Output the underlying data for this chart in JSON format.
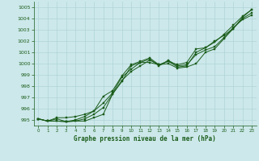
{
  "background_color": "#cce8ea",
  "grid_color": "#b0d4d8",
  "line_color": "#1a5c1a",
  "title": "Graphe pression niveau de la mer (hPa)",
  "xlim": [
    -0.5,
    23.5
  ],
  "ylim": [
    994.5,
    1005.5
  ],
  "yticks": [
    995,
    996,
    997,
    998,
    999,
    1000,
    1001,
    1002,
    1003,
    1004,
    1005
  ],
  "xticks": [
    0,
    1,
    2,
    3,
    4,
    5,
    6,
    7,
    8,
    9,
    10,
    11,
    12,
    13,
    14,
    15,
    16,
    17,
    18,
    19,
    20,
    21,
    22,
    23
  ],
  "series": [
    [
      995.1,
      994.9,
      994.9,
      994.85,
      994.9,
      994.9,
      995.2,
      995.5,
      997.3,
      998.4,
      999.8,
      1000.1,
      1000.1,
      999.9,
      1000.0,
      999.6,
      999.7,
      1000.0,
      1001.0,
      1001.3,
      1002.2,
      1003.1,
      1004.0,
      1004.5
    ],
    [
      995.1,
      994.9,
      995.1,
      994.85,
      994.9,
      995.1,
      995.5,
      996.1,
      997.3,
      998.5,
      999.3,
      999.8,
      1000.3,
      999.9,
      1000.2,
      999.7,
      999.8,
      1001.0,
      1001.4,
      1001.9,
      1002.6,
      1003.4,
      1004.2,
      1004.8
    ],
    [
      995.1,
      994.9,
      994.9,
      994.85,
      995.0,
      995.3,
      995.8,
      996.5,
      997.4,
      998.8,
      999.5,
      1000.1,
      1000.4,
      999.8,
      1000.3,
      999.8,
      999.9,
      1000.8,
      1001.2,
      1001.5,
      1002.3,
      1003.2,
      1003.9,
      1004.3
    ],
    [
      995.1,
      994.9,
      995.2,
      995.2,
      995.3,
      995.5,
      995.8,
      997.1,
      997.6,
      998.9,
      999.9,
      1000.2,
      1000.5,
      999.9,
      1000.2,
      999.9,
      1000.1,
      1001.3,
      1001.4,
      1002.0,
      1002.5,
      1003.1,
      1004.1,
      1004.8
    ]
  ]
}
